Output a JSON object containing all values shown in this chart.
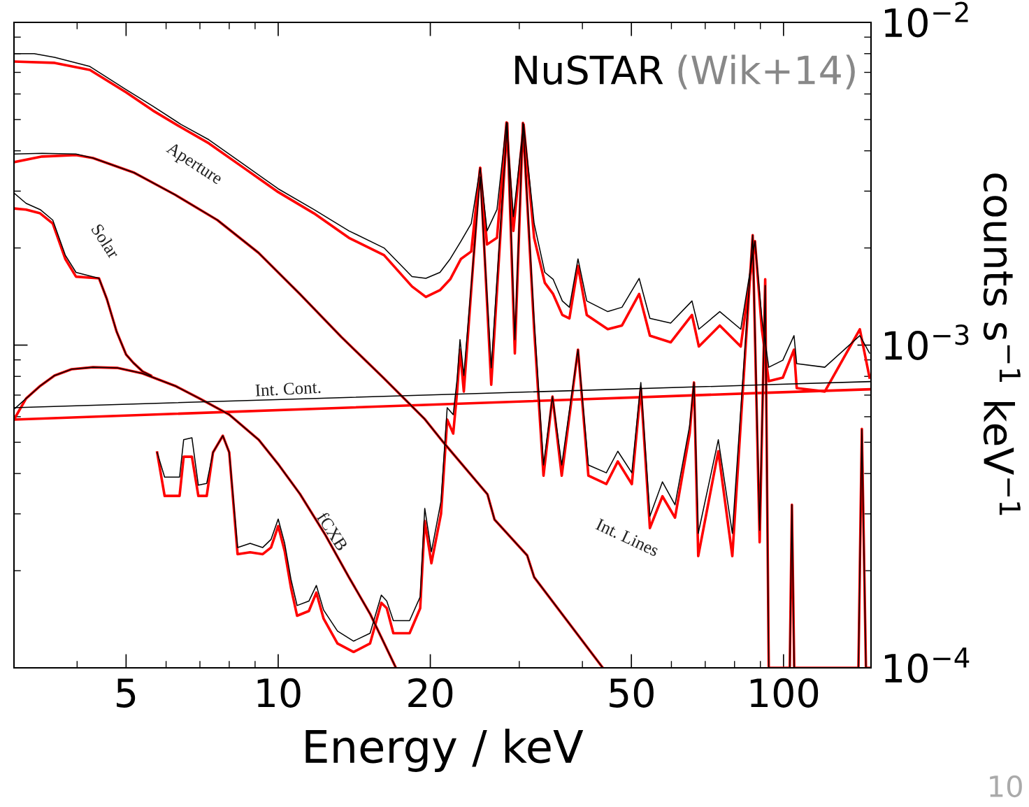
{
  "chart_data": {
    "type": "line",
    "title": "NuSTAR",
    "subtitle": "(Wik+14)",
    "xlabel": "Energy / keV",
    "ylabel": "counts s$^{−1}$ keV$^{−1}$",
    "log": "xy",
    "xlim": [
      3.0,
      149
    ],
    "ylim": [
      0.0001,
      0.01
    ],
    "xticks": [
      5,
      10,
      20,
      50,
      100
    ],
    "yticks": [
      {
        "value": 0.0001,
        "label": "10$^{−4}$"
      },
      {
        "value": 0.001,
        "label": "10$^{−3}$"
      },
      {
        "value": 0.01,
        "label": "10$^{−2}$"
      }
    ],
    "grid": false,
    "legend": false,
    "marker": "none",
    "line_style": "solid",
    "annotations": [
      "10"
    ],
    "series": [
      {
        "color": "#000000",
        "x": [
          3.0,
          3.29,
          3.61,
          4.24,
          5.0,
          5.65,
          6.42,
          7.29,
          8.55,
          10.0,
          11.77,
          13.8,
          16.2,
          18.4,
          19.6,
          20.9,
          21.9,
          23.0,
          24.1,
          25.1,
          25.9,
          27.1,
          28.3,
          29.2,
          30.6,
          32.1,
          33.7,
          35.0,
          36.5,
          37.7,
          39.2,
          40.8,
          44.9,
          47.9,
          51.8,
          54.4,
          59.8,
          65.9,
          68.0,
          74.8,
          82.3,
          87.8,
          90.6,
          93.5,
          99.7,
          104.9,
          106.2,
          120.7,
          141.6,
          148
        ],
        "values": [
          0.008,
          0.008,
          0.00779,
          0.0073,
          0.00619,
          0.0055,
          0.00483,
          0.00433,
          0.00363,
          0.00305,
          0.00263,
          0.00226,
          0.002,
          0.00163,
          0.00161,
          0.00168,
          0.00185,
          0.0021,
          0.00238,
          0.00354,
          0.00226,
          0.00263,
          0.0049,
          0.0025,
          0.00483,
          0.00238,
          0.00168,
          0.0016,
          0.00137,
          0.00131,
          0.00185,
          0.00137,
          0.00127,
          0.00131,
          0.00161,
          0.00121,
          0.00117,
          0.00137,
          0.00112,
          0.00127,
          0.00112,
          0.0021,
          0.00121,
          0.000854,
          0.000898,
          0.00107,
          0.000876,
          0.000854,
          0.00107,
          0.000944
        ]
      },
      {
        "color": "#ff0000",
        "x": [
          3.0,
          3.61,
          4.24,
          5.0,
          5.65,
          6.42,
          7.29,
          8.55,
          10.0,
          11.77,
          13.8,
          16.2,
          18.4,
          19.6,
          20.9,
          21.9,
          23.0,
          24.1,
          25.1,
          25.9,
          27.1,
          28.3,
          29.2,
          30.6,
          32.1,
          33.7,
          35.0,
          36.5,
          37.7,
          39.2,
          40.8,
          44.9,
          47.9,
          51.8,
          54.4,
          59.8,
          65.9,
          68.0,
          74.8,
          82.3,
          87.8,
          90.6,
          93.5,
          99.7,
          104.9,
          106.2,
          120.7,
          141.6,
          148
        ],
        "values": [
          0.00756,
          0.00749,
          0.00712,
          0.00607,
          0.00533,
          0.00473,
          0.00422,
          0.00354,
          0.00298,
          0.00256,
          0.00215,
          0.0019,
          0.00152,
          0.00141,
          0.00148,
          0.0016,
          0.00185,
          0.00195,
          0.00354,
          0.00205,
          0.00215,
          0.0049,
          0.00226,
          0.00483,
          0.00215,
          0.00156,
          0.00144,
          0.00124,
          0.00121,
          0.00176,
          0.00124,
          0.00112,
          0.00115,
          0.00144,
          0.00107,
          0.00102,
          0.00124,
          0.00099,
          0.00115,
          0.00099,
          0.0021,
          0.00112,
          0.000773,
          0.000793,
          0.000968,
          0.000736,
          0.000718,
          0.00112,
          0.000793
        ]
      },
      {
        "name": "Aperture",
        "color": "#000000",
        "x": [
          3.0,
          3.41,
          3.98,
          4.3,
          5.19,
          6.26,
          7.58,
          9.15,
          11.04,
          13.33,
          16.14,
          19.48,
          21.2,
          25.95,
          26.8,
          31.1,
          32.1,
          43.9
        ],
        "values": [
          0.00391,
          0.00393,
          0.00391,
          0.0038,
          0.00342,
          0.00292,
          0.00244,
          0.00193,
          0.00144,
          0.00106,
          0.000793,
          0.000591,
          0.000501,
          0.000345,
          0.000288,
          0.000223,
          0.000191,
          0.0001
        ]
      },
      {
        "color": "#ff0000",
        "x": [
          3.0,
          3.41,
          3.98,
          4.3,
          5.19,
          6.26,
          7.58,
          9.15,
          11.04,
          13.33,
          16.14,
          19.48,
          21.2,
          25.95,
          26.8,
          31.1,
          32.1,
          43.9
        ],
        "values": [
          0.00369,
          0.00384,
          0.00388,
          0.0038,
          0.00342,
          0.00292,
          0.00244,
          0.00193,
          0.00144,
          0.00106,
          0.000793,
          0.000591,
          0.000501,
          0.000345,
          0.000288,
          0.000223,
          0.000191,
          0.0001
        ]
      },
      {
        "name": "Solar",
        "color": "#000000",
        "x": [
          3.0,
          3.17,
          3.38,
          3.58,
          3.79,
          3.98,
          4.42,
          4.58,
          4.79,
          5.0,
          5.17,
          5.39,
          5.6
        ],
        "values": [
          0.00296,
          0.00275,
          0.00263,
          0.00244,
          0.0019,
          0.00168,
          0.00161,
          0.00139,
          0.0011,
          0.000935,
          0.000881,
          0.000829,
          0.000805
        ]
      },
      {
        "color": "#ff0000",
        "x": [
          3.0,
          3.17,
          3.38,
          3.58,
          3.79,
          3.98,
          4.42,
          4.58,
          4.79,
          5.0,
          5.17,
          5.39,
          5.6
        ],
        "values": [
          0.00265,
          0.00263,
          0.00256,
          0.00238,
          0.00185,
          0.00163,
          0.00161,
          0.00139,
          0.0011,
          0.000935,
          0.000881,
          0.000829,
          0.000805
        ]
      },
      {
        "name": "fCXB",
        "color": "#000000",
        "x": [
          3.0,
          3.17,
          3.38,
          3.61,
          3.9,
          4.3,
          4.8,
          5.39,
          6.26,
          6.99,
          8.0,
          9.15,
          10.03,
          11.04,
          12.4,
          13.8,
          15.2,
          17.1
        ],
        "values": [
          0.000633,
          0.000683,
          0.000747,
          0.000805,
          0.000842,
          0.000854,
          0.00085,
          0.000817,
          0.000747,
          0.000683,
          0.000609,
          0.000509,
          0.000425,
          0.000346,
          0.000258,
          0.000191,
          0.000147,
          0.0001
        ]
      },
      {
        "color": "#ff0000",
        "x": [
          3.0,
          3.17,
          3.38,
          3.61,
          3.9,
          4.3,
          4.8,
          5.39,
          6.26,
          6.99,
          8.0,
          9.15,
          10.03,
          11.04,
          12.4,
          13.8,
          15.2,
          17.1
        ],
        "values": [
          0.000588,
          0.000683,
          0.000747,
          0.000805,
          0.000842,
          0.000854,
          0.00085,
          0.000817,
          0.000747,
          0.000683,
          0.000609,
          0.000509,
          0.000425,
          0.000346,
          0.000258,
          0.000191,
          0.000147,
          0.0001
        ]
      },
      {
        "name": "Int. Cont.",
        "color": "#000000",
        "x": [
          3.0,
          93.5,
          149
        ],
        "values": [
          0.00064,
          0.000754,
          0.000771
        ]
      },
      {
        "color": "#ff0000",
        "x": [
          3.0,
          90.6,
          149
        ],
        "values": [
          0.000588,
          0.000711,
          0.00073
        ]
      },
      {
        "name": "Int. Lines",
        "color": "#000000",
        "x": [
          5.76,
          5.96,
          6.38,
          6.5,
          6.75,
          6.95,
          7.22,
          7.43,
          7.77,
          8.0,
          8.31,
          8.8,
          9.32,
          9.68,
          10.0,
          10.3,
          10.6,
          10.9,
          11.5,
          11.9,
          12.3,
          13.1,
          14.1,
          15.2,
          16.0,
          16.4,
          16.9,
          18.2,
          19.1,
          19.5,
          20.1,
          21.0,
          21.6,
          22.2,
          22.6,
          22.9,
          23.3,
          25.1,
          26.4,
          28.4,
          29.4,
          30.5,
          32.1,
          33.5,
          34.9,
          36.4,
          39.2,
          41.1,
          44.6,
          47.0,
          50.1,
          52.2,
          54.4,
          57.6,
          61.0,
          65.2,
          66.5,
          67.8,
          74.3,
          79.2,
          86.9,
          89.7,
          92.0,
          93.5,
          102.9,
          103.9,
          105.0,
          140.7,
          142.9,
          145.6,
          148.9
        ],
        "values": [
          0.000465,
          0.00039,
          0.00039,
          0.000509,
          0.000516,
          0.000368,
          0.000373,
          0.000465,
          0.000524,
          0.000465,
          0.000236,
          0.000243,
          0.000236,
          0.00025,
          0.000289,
          0.000243,
          0.000188,
          0.000156,
          0.000161,
          0.00018,
          0.000151,
          0.00013,
          0.000121,
          0.000128,
          0.000168,
          0.000161,
          0.00014,
          0.00014,
          0.000166,
          0.000312,
          0.000229,
          0.000328,
          0.00064,
          0.000609,
          0.000785,
          0.00104,
          0.000805,
          0.00332,
          0.00085,
          0.00488,
          0.00104,
          0.00488,
          0.00119,
          0.000425,
          0.000693,
          0.000425,
          0.000968,
          0.000425,
          0.000402,
          0.000469,
          0.000402,
          0.000766,
          0.000295,
          0.000377,
          0.00032,
          0.000562,
          0.000766,
          0.000261,
          0.000509,
          0.000261,
          0.00219,
          0.000267,
          0.00153,
          0.0001,
          0.0001,
          0.00032,
          0.0001,
          0.0001,
          0.000548,
          0.0001,
          0.0001
        ]
      },
      {
        "color": "#ff0000",
        "x": [
          5.76,
          5.96,
          6.38,
          6.5,
          6.75,
          6.95,
          7.22,
          7.43,
          7.77,
          8.0,
          8.31,
          8.8,
          9.32,
          9.68,
          10.0,
          10.3,
          10.6,
          10.9,
          11.5,
          11.9,
          12.3,
          13.1,
          14.1,
          15.2,
          16.0,
          16.4,
          16.9,
          18.2,
          19.1,
          19.5,
          20.1,
          21.0,
          21.6,
          22.2,
          22.6,
          22.9,
          23.3,
          25.1,
          26.4,
          28.4,
          29.4,
          30.5,
          32.1,
          33.5,
          34.9,
          36.4,
          39.2,
          41.1,
          44.6,
          47.0,
          50.1,
          52.2,
          54.4,
          57.6,
          61.0,
          65.2,
          66.5,
          67.8,
          74.3,
          79.2,
          86.9,
          89.7,
          92.0,
          93.5,
          102.9,
          103.9,
          105.0,
          140.7,
          142.9,
          145.6,
          148.9
        ],
        "values": [
          0.000465,
          0.000341,
          0.000341,
          0.000451,
          0.000451,
          0.000341,
          0.000341,
          0.000465,
          0.000524,
          0.000465,
          0.000225,
          0.000228,
          0.000225,
          0.000236,
          0.000275,
          0.00023,
          0.000177,
          0.000145,
          0.00015,
          0.000171,
          0.000142,
          0.000119,
          0.000112,
          0.000119,
          0.000159,
          0.000153,
          0.000128,
          0.000128,
          0.000153,
          0.000285,
          0.000211,
          0.0003,
          0.000588,
          0.000532,
          0.000718,
          0.000968,
          0.000718,
          0.00354,
          0.000754,
          0.00488,
          0.000942,
          0.00488,
          0.00112,
          0.000394,
          0.000693,
          0.000394,
          0.000968,
          0.000394,
          0.000371,
          0.000436,
          0.000371,
          0.000736,
          0.000271,
          0.00034,
          0.000292,
          0.000532,
          0.000766,
          0.000222,
          0.000469,
          0.000222,
          0.00219,
          0.000245,
          0.0016,
          0.0001,
          0.0001,
          0.00032,
          0.0001,
          0.0001,
          0.00055,
          0.0001,
          0.0001
        ]
      }
    ]
  }
}
